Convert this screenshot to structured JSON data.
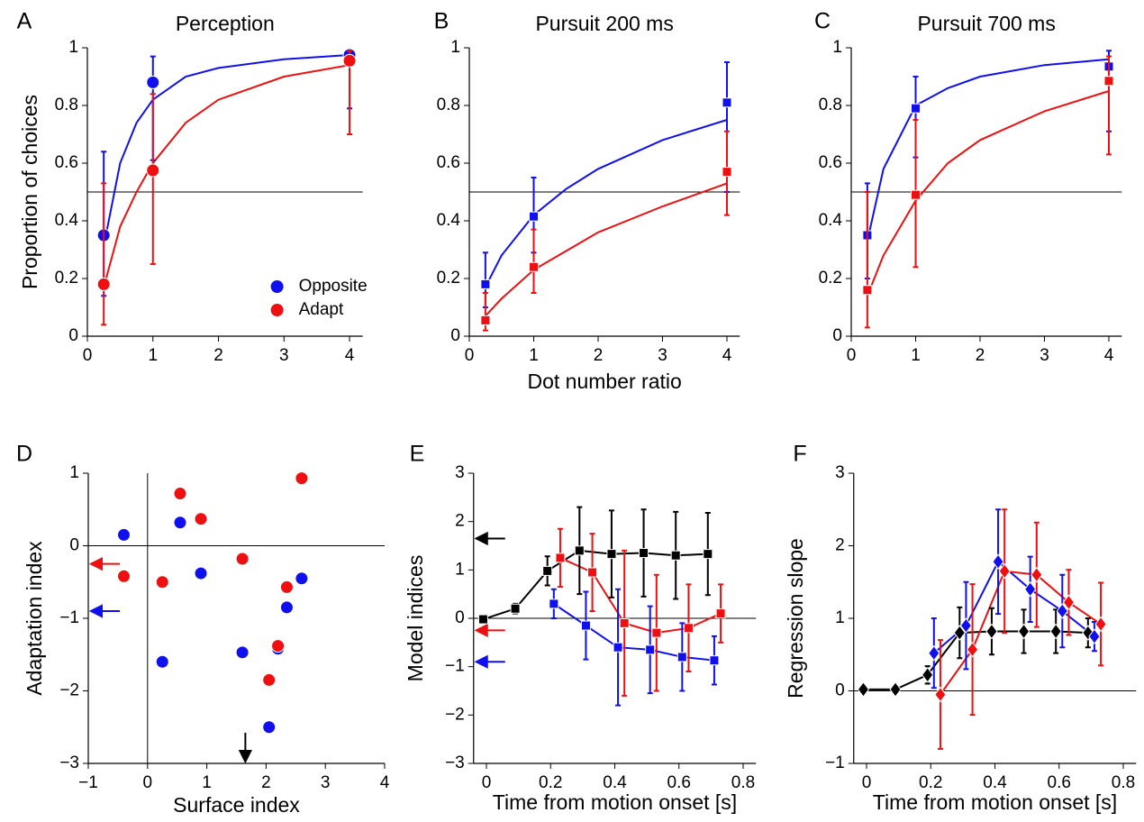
{
  "chart_data": [
    {
      "type": "scatter",
      "panel_label": "A",
      "title": "Perception",
      "ylabel": "Proportion of choices",
      "marker": "circle",
      "xlim": [
        0,
        4.2
      ],
      "xticks": [
        0,
        1,
        2,
        3,
        4
      ],
      "ylim": [
        0,
        1
      ],
      "yticks": [
        0,
        0.2,
        0.4,
        0.6,
        0.8,
        1
      ],
      "hline": 0.5,
      "legend": "lower right",
      "series": [
        {
          "name": "Opposite",
          "color": "#1010ee",
          "x": [
            0.25,
            1,
            4
          ],
          "values": [
            0.35,
            0.88,
            0.975
          ],
          "lower": [
            0.14,
            0.61,
            0.79
          ],
          "upper": [
            0.64,
            0.97,
            0.99
          ],
          "fit_x": [
            0.3,
            0.5,
            0.75,
            1,
            1.5,
            2,
            3,
            4
          ],
          "fit_values": [
            0.37,
            0.6,
            0.74,
            0.82,
            0.9,
            0.93,
            0.96,
            0.975
          ]
        },
        {
          "name": "Adapt",
          "color": "#ee1010",
          "x": [
            0.25,
            1,
            4
          ],
          "values": [
            0.18,
            0.575,
            0.955
          ],
          "lower": [
            0.04,
            0.25,
            0.7
          ],
          "upper": [
            0.53,
            0.84,
            0.99
          ],
          "fit_x": [
            0.25,
            0.5,
            0.75,
            1,
            1.5,
            2,
            3,
            4
          ],
          "fit_values": [
            0.17,
            0.38,
            0.5,
            0.6,
            0.74,
            0.82,
            0.9,
            0.94
          ]
        }
      ]
    },
    {
      "type": "scatter",
      "panel_label": "B",
      "title": "Pursuit 200 ms",
      "xlabel": "Dot number ratio",
      "marker": "square",
      "xlim": [
        0,
        4.2
      ],
      "xticks": [
        0,
        1,
        2,
        3,
        4
      ],
      "ylim": [
        0,
        1
      ],
      "yticks": [
        0,
        0.2,
        0.4,
        0.6,
        0.8,
        1
      ],
      "hline": 0.5,
      "series": [
        {
          "color": "#1010ee",
          "x": [
            0.25,
            1,
            4
          ],
          "values": [
            0.18,
            0.415,
            0.81
          ],
          "lower": [
            0.1,
            0.29,
            0.5
          ],
          "upper": [
            0.29,
            0.55,
            0.95
          ],
          "fit_x": [
            0.25,
            0.5,
            1,
            1.5,
            2,
            3,
            4
          ],
          "fit_values": [
            0.17,
            0.28,
            0.42,
            0.51,
            0.58,
            0.68,
            0.75
          ]
        },
        {
          "color": "#ee1010",
          "x": [
            0.25,
            1,
            4
          ],
          "values": [
            0.055,
            0.24,
            0.57
          ],
          "lower": [
            0.02,
            0.15,
            0.42
          ],
          "upper": [
            0.15,
            0.37,
            0.71
          ],
          "fit_x": [
            0.25,
            0.5,
            1,
            2,
            3,
            4
          ],
          "fit_values": [
            0.07,
            0.13,
            0.23,
            0.36,
            0.45,
            0.53
          ]
        }
      ]
    },
    {
      "type": "scatter",
      "panel_label": "C",
      "title": "Pursuit 700 ms",
      "marker": "square",
      "xlim": [
        0,
        4.2
      ],
      "xticks": [
        0,
        1,
        2,
        3,
        4
      ],
      "ylim": [
        0,
        1
      ],
      "yticks": [
        0,
        0.2,
        0.4,
        0.6,
        0.8,
        1
      ],
      "hline": 0.5,
      "series": [
        {
          "color": "#1010ee",
          "x": [
            0.25,
            1,
            4
          ],
          "values": [
            0.35,
            0.79,
            0.935
          ],
          "lower": [
            0.2,
            0.62,
            0.71
          ],
          "upper": [
            0.53,
            0.9,
            0.99
          ],
          "fit_x": [
            0.25,
            0.5,
            1,
            1.5,
            2,
            3,
            4
          ],
          "fit_values": [
            0.33,
            0.58,
            0.8,
            0.86,
            0.9,
            0.94,
            0.96
          ]
        },
        {
          "color": "#ee1010",
          "x": [
            0.25,
            1,
            4
          ],
          "values": [
            0.16,
            0.49,
            0.885
          ],
          "lower": [
            0.03,
            0.24,
            0.63
          ],
          "upper": [
            0.5,
            0.75,
            0.97
          ],
          "fit_x": [
            0.25,
            0.5,
            1,
            1.5,
            2,
            3,
            4
          ],
          "fit_values": [
            0.14,
            0.28,
            0.47,
            0.6,
            0.68,
            0.78,
            0.85
          ]
        }
      ]
    },
    {
      "type": "scatter",
      "panel_label": "D",
      "xlabel": "Surface index",
      "ylabel": "Adaptation index",
      "marker": "circle",
      "xlim": [
        -1,
        4
      ],
      "xticks": [
        {
          "value": -1,
          "label": "−1"
        },
        0,
        1,
        2,
        3,
        4
      ],
      "ylim": [
        -3,
        1
      ],
      "yticks": [
        {
          "value": -3,
          "label": "−3"
        },
        {
          "value": -2,
          "label": "−2"
        },
        {
          "value": -1,
          "label": "−1"
        },
        0,
        1
      ],
      "hline": 0,
      "vline": 0,
      "arrows": [
        {
          "axis": "y",
          "value": -0.25,
          "color": "#ee1010"
        },
        {
          "axis": "y",
          "value": -0.9,
          "color": "#1010ee"
        },
        {
          "axis": "x",
          "value": 1.65,
          "color": "#000000"
        }
      ],
      "series": [
        {
          "color": "#1010ee",
          "x": [
            -0.4,
            0.25,
            0.55,
            0.9,
            1.6,
            2.05,
            2.2,
            2.35,
            2.6
          ],
          "values": [
            0.15,
            -1.6,
            0.32,
            -0.38,
            -1.47,
            -2.5,
            -1.42,
            -0.85,
            -0.45
          ]
        },
        {
          "color": "#ee1010",
          "x": [
            -0.4,
            0.25,
            0.55,
            0.9,
            1.6,
            2.05,
            2.2,
            2.35,
            2.6
          ],
          "values": [
            -0.42,
            -0.5,
            0.72,
            0.37,
            -0.18,
            -1.85,
            -1.38,
            -0.57,
            0.93
          ]
        }
      ]
    },
    {
      "type": "line",
      "panel_label": "E",
      "xlabel": "Time from motion onset [s]",
      "ylabel": "Model indices",
      "marker": "square",
      "xlim": [
        -0.04,
        0.84
      ],
      "xticks": [
        0,
        0.2,
        0.4,
        0.6,
        0.8
      ],
      "ylim": [
        -3,
        3
      ],
      "yticks": [
        {
          "value": -3,
          "label": "−3"
        },
        {
          "value": -2,
          "label": "−2"
        },
        {
          "value": -1,
          "label": "−1"
        },
        0,
        1,
        2,
        3
      ],
      "hline": 0,
      "arrows": [
        {
          "axis": "y",
          "value": 1.65,
          "color": "#000000"
        },
        {
          "axis": "y",
          "value": -0.25,
          "color": "#ee1010"
        },
        {
          "axis": "y",
          "value": -0.9,
          "color": "#1010ee"
        }
      ],
      "series": [
        {
          "color": "#000000",
          "x": [
            -0.01,
            0.09,
            0.19,
            0.29,
            0.39,
            0.49,
            0.59,
            0.69
          ],
          "values": [
            -0.02,
            0.2,
            0.98,
            1.4,
            1.33,
            1.35,
            1.3,
            1.33
          ],
          "errors": [
            0.08,
            0.1,
            0.3,
            0.9,
            0.9,
            0.9,
            0.9,
            0.85
          ]
        },
        {
          "color": "#ee1010",
          "x": [
            0.23,
            0.33,
            0.43,
            0.53,
            0.63,
            0.73
          ],
          "values": [
            1.25,
            0.95,
            -0.1,
            -0.3,
            -0.2,
            0.1
          ],
          "errors": [
            0.6,
            0.8,
            1.5,
            1.2,
            0.9,
            0.6
          ]
        },
        {
          "color": "#1010ee",
          "x": [
            0.21,
            0.31,
            0.41,
            0.51,
            0.61,
            0.71
          ],
          "values": [
            0.3,
            -0.15,
            -0.6,
            -0.65,
            -0.8,
            -0.87
          ],
          "errors": [
            0.3,
            0.7,
            1.2,
            0.9,
            0.7,
            0.5
          ]
        }
      ]
    },
    {
      "type": "line",
      "panel_label": "F",
      "xlabel": "Time from motion onset [s]",
      "ylabel": "Regression slope",
      "marker": "diamond",
      "xlim": [
        -0.04,
        0.84
      ],
      "xticks": [
        0,
        0.2,
        0.4,
        0.6,
        0.8
      ],
      "ylim": [
        -1,
        3
      ],
      "yticks": [
        {
          "value": -1,
          "label": "−1"
        },
        0,
        1,
        2,
        3
      ],
      "hline": 0,
      "series": [
        {
          "color": "#000000",
          "x": [
            -0.01,
            0.09,
            0.19,
            0.29,
            0.39,
            0.49,
            0.59,
            0.69
          ],
          "values": [
            0.02,
            0.02,
            0.22,
            0.8,
            0.82,
            0.82,
            0.82,
            0.8
          ],
          "errors": [
            0,
            0,
            0.12,
            0.35,
            0.32,
            0.3,
            0.3,
            0.2
          ]
        },
        {
          "color": "#1010ee",
          "x": [
            0.21,
            0.31,
            0.41,
            0.51,
            0.61,
            0.71
          ],
          "values": [
            0.52,
            0.9,
            1.78,
            1.4,
            1.1,
            0.75
          ],
          "errors": [
            0.48,
            0.6,
            0.72,
            0.45,
            0.5,
            0.2
          ]
        },
        {
          "color": "#ee1010",
          "x": [
            0.23,
            0.33,
            0.43,
            0.53,
            0.63,
            0.73
          ],
          "values": [
            -0.05,
            0.57,
            1.65,
            1.6,
            1.22,
            0.92
          ],
          "errors": [
            0.75,
            0.9,
            0.85,
            0.72,
            0.45,
            0.57
          ]
        }
      ]
    }
  ]
}
